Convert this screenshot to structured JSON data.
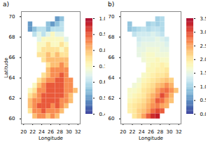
{
  "chart_data": [
    {
      "type": "heatmap",
      "title": "a)",
      "xlabel": "Longitude",
      "ylabel": "Latitude",
      "x": [
        20.5,
        21.5,
        22.5,
        23.5,
        24.5,
        25.5,
        26.5,
        27.5,
        28.5,
        29.5,
        30.5,
        31.5
      ],
      "y": [
        69.75,
        69.25,
        68.75,
        68.25,
        67.75,
        67.25,
        66.75,
        66.25,
        65.75,
        65.25,
        64.75,
        64.25,
        63.75,
        63.25,
        62.75,
        62.25,
        61.75,
        61.25,
        60.75,
        60.25
      ],
      "values": [
        [
          null,
          null,
          null,
          null,
          null,
          null,
          null,
          0.5,
          0.55,
          null,
          null,
          null
        ],
        [
          null,
          0.5,
          null,
          null,
          null,
          0.55,
          0.5,
          0.55,
          0.6,
          null,
          null,
          null
        ],
        [
          null,
          0.5,
          0.55,
          0.6,
          0.6,
          0.55,
          0.6,
          0.6,
          0.6,
          null,
          null,
          null
        ],
        [
          null,
          null,
          0.6,
          0.65,
          0.6,
          0.65,
          0.7,
          0.65,
          0.65,
          null,
          null,
          null
        ],
        [
          null,
          null,
          null,
          0.65,
          0.7,
          0.7,
          0.7,
          0.7,
          0.7,
          0.65,
          null,
          null
        ],
        [
          null,
          null,
          null,
          0.7,
          0.7,
          0.75,
          0.7,
          0.7,
          0.75,
          0.7,
          null,
          null
        ],
        [
          null,
          null,
          null,
          0.7,
          0.75,
          0.75,
          0.75,
          0.75,
          0.7,
          0.75,
          null,
          null
        ],
        [
          null,
          null,
          null,
          0.75,
          0.75,
          0.8,
          0.75,
          0.8,
          0.75,
          0.75,
          null,
          null
        ],
        [
          null,
          null,
          null,
          null,
          0.75,
          0.8,
          0.8,
          0.8,
          0.8,
          0.8,
          null,
          null
        ],
        [
          null,
          null,
          null,
          null,
          null,
          0.75,
          0.8,
          0.8,
          0.85,
          0.8,
          null,
          null
        ],
        [
          null,
          null,
          null,
          null,
          null,
          0.8,
          0.85,
          0.85,
          0.85,
          0.85,
          null,
          null
        ],
        [
          null,
          null,
          null,
          null,
          0.75,
          0.8,
          0.85,
          0.85,
          0.9,
          0.85,
          null,
          null
        ],
        [
          null,
          null,
          null,
          0.75,
          0.8,
          0.85,
          0.85,
          0.9,
          0.9,
          0.85,
          0.85,
          null
        ],
        [
          null,
          null,
          0.7,
          0.8,
          0.85,
          0.9,
          0.9,
          0.9,
          0.9,
          0.85,
          0.85,
          null
        ],
        [
          null,
          0.7,
          0.75,
          0.85,
          0.85,
          0.9,
          0.9,
          0.9,
          0.9,
          0.85,
          0.85,
          0.8
        ],
        [
          null,
          0.75,
          0.8,
          0.85,
          0.9,
          0.9,
          0.9,
          0.9,
          0.9,
          0.85,
          0.8,
          null
        ],
        [
          null,
          0.8,
          0.85,
          0.85,
          0.9,
          0.9,
          0.9,
          0.9,
          0.85,
          0.85,
          0.8,
          null
        ],
        [
          null,
          0.8,
          0.85,
          0.9,
          0.9,
          0.9,
          0.85,
          0.9,
          0.85,
          0.8,
          null,
          null
        ],
        [
          null,
          0.75,
          0.85,
          0.85,
          0.9,
          0.85,
          0.85,
          0.85,
          0.8,
          null,
          null,
          null
        ],
        [
          null,
          null,
          0.8,
          0.85,
          0.85,
          0.8,
          0.85,
          0.8,
          null,
          null,
          null,
          null
        ]
      ],
      "xlim": [
        19.5,
        32.5
      ],
      "xticks": [
        20,
        22,
        24,
        26,
        28,
        30,
        32
      ],
      "ylim": [
        59.5,
        70.5
      ],
      "yticks": [
        60,
        62,
        64,
        66,
        68,
        70
      ],
      "colorbar_range": [
        0.4,
        1.0
      ],
      "colorbar_ticks": [
        0.4,
        0.5,
        0.6,
        0.7,
        0.8,
        0.9,
        {
          "value": 1,
          "label": "1.0"
        }
      ]
    },
    {
      "type": "heatmap",
      "title": "b)",
      "xlabel": "Longitude",
      "x": [
        20.5,
        21.5,
        22.5,
        23.5,
        24.5,
        25.5,
        26.5,
        27.5,
        28.5,
        29.5,
        30.5,
        31.5
      ],
      "y": [
        69.75,
        69.25,
        68.75,
        68.25,
        67.75,
        67.25,
        66.75,
        66.25,
        65.75,
        65.25,
        64.75,
        64.25,
        63.75,
        63.25,
        62.75,
        62.25,
        61.75,
        61.25,
        60.75,
        60.25
      ],
      "values": [
        [
          null,
          null,
          null,
          null,
          null,
          null,
          null,
          1.0,
          1.1,
          null,
          null,
          null
        ],
        [
          null,
          0.9,
          null,
          null,
          null,
          1.0,
          1.1,
          1.0,
          1.1,
          null,
          null,
          null
        ],
        [
          null,
          0.9,
          1.0,
          1.1,
          1.2,
          1.1,
          1.2,
          1.2,
          1.1,
          null,
          null,
          null
        ],
        [
          null,
          null,
          1.2,
          1.3,
          1.3,
          1.3,
          1.4,
          1.3,
          1.2,
          null,
          null,
          null
        ],
        [
          null,
          null,
          null,
          1.3,
          1.4,
          1.4,
          1.4,
          1.5,
          1.4,
          1.3,
          null,
          null
        ],
        [
          null,
          null,
          null,
          1.4,
          1.5,
          1.5,
          1.5,
          1.5,
          1.5,
          1.4,
          null,
          null
        ],
        [
          null,
          null,
          null,
          1.5,
          1.5,
          1.6,
          1.6,
          1.6,
          1.5,
          1.5,
          null,
          null
        ],
        [
          null,
          null,
          null,
          1.5,
          1.6,
          1.7,
          1.7,
          1.6,
          1.6,
          1.6,
          null,
          null
        ],
        [
          null,
          null,
          null,
          null,
          1.6,
          1.7,
          1.7,
          1.8,
          1.7,
          1.7,
          null,
          null
        ],
        [
          null,
          null,
          null,
          null,
          null,
          1.7,
          1.8,
          1.8,
          1.9,
          1.8,
          null,
          null
        ],
        [
          null,
          null,
          null,
          null,
          null,
          1.8,
          1.8,
          1.9,
          1.9,
          2.0,
          null,
          null
        ],
        [
          null,
          null,
          null,
          null,
          1.7,
          1.8,
          1.9,
          2.0,
          2.0,
          2.1,
          null,
          null
        ],
        [
          null,
          null,
          null,
          1.6,
          1.8,
          1.9,
          2.0,
          2.1,
          2.2,
          2.3,
          2.2,
          null
        ],
        [
          null,
          null,
          1.6,
          1.7,
          1.9,
          2.0,
          2.1,
          2.3,
          2.4,
          2.6,
          2.4,
          null
        ],
        [
          null,
          1.7,
          1.7,
          1.8,
          2.0,
          2.1,
          2.2,
          2.5,
          2.7,
          2.8,
          2.6,
          2.3
        ],
        [
          null,
          1.7,
          1.8,
          1.9,
          2.0,
          2.2,
          2.4,
          2.6,
          3.0,
          2.7,
          2.4,
          null
        ],
        [
          null,
          1.8,
          1.9,
          2.0,
          2.1,
          2.3,
          2.5,
          2.9,
          2.8,
          2.5,
          2.3,
          null
        ],
        [
          null,
          1.9,
          2.0,
          2.1,
          2.2,
          2.4,
          2.6,
          2.7,
          2.5,
          2.4,
          null,
          null
        ],
        [
          null,
          1.9,
          2.0,
          2.2,
          2.3,
          2.5,
          2.8,
          3.0,
          2.9,
          null,
          null,
          null
        ],
        [
          null,
          null,
          2.0,
          2.2,
          2.5,
          2.9,
          3.2,
          3.3,
          null,
          null,
          null,
          null
        ]
      ],
      "xlim": [
        19.5,
        32.5
      ],
      "xticks": [
        20,
        22,
        24,
        26,
        28,
        30,
        32
      ],
      "ylim": [
        59.5,
        70.5
      ],
      "yticks": [
        60,
        62,
        64,
        66,
        68,
        70
      ],
      "colorbar_range": [
        0.0,
        3.5
      ],
      "colorbar_ticks": [
        {
          "value": 0,
          "label": "0.0"
        },
        0.5,
        {
          "value": 1,
          "label": "1.0"
        },
        1.5,
        {
          "value": 2,
          "label": "2.0"
        },
        2.5,
        {
          "value": 3,
          "label": "3.0"
        },
        3.5
      ]
    }
  ]
}
